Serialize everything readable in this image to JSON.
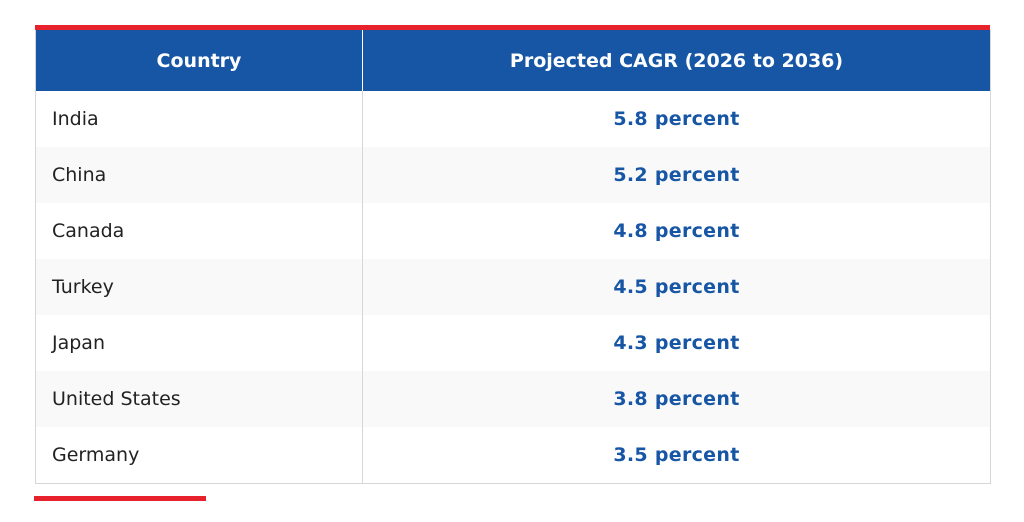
{
  "table": {
    "headers": [
      "Country",
      "Projected CAGR (2026 to 2036)"
    ],
    "rows": [
      {
        "country": "India",
        "cagr": "5.8 percent"
      },
      {
        "country": "China",
        "cagr": "5.2 percent"
      },
      {
        "country": "Canada",
        "cagr": "4.8 percent"
      },
      {
        "country": "Turkey",
        "cagr": "4.5 percent"
      },
      {
        "country": "Japan",
        "cagr": "4.3 percent"
      },
      {
        "country": "United States",
        "cagr": "3.8 percent"
      },
      {
        "country": "Germany",
        "cagr": "3.5 percent"
      }
    ]
  },
  "colors": {
    "header_bg": "#1656a5",
    "header_text": "#ffffff",
    "value_text": "#1656a5",
    "accent": "#e8222d",
    "stripe": "#f9f9f9"
  }
}
